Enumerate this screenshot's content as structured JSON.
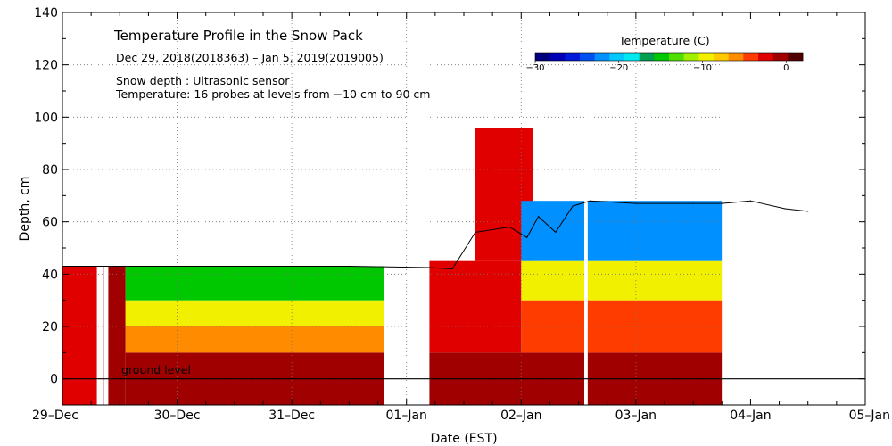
{
  "chart_data": {
    "type": "heatmap",
    "title": "Temperature Profile in the Snow Pack",
    "subtitle": "Dec 29, 2018(2018363) – Jan  5, 2019(2019005)",
    "annotations": [
      "Snow depth : Ultrasonic sensor",
      "Temperature: 16 probes at levels from −10 cm to 90 cm"
    ],
    "ground_label": "ground level",
    "xlabel": "Date (EST)",
    "ylabel": "Depth, cm",
    "xlim": [
      0,
      7
    ],
    "ylim": [
      -10,
      140
    ],
    "grid": true,
    "x_ticks": [
      {
        "pos": 0,
        "label": "29–Dec"
      },
      {
        "pos": 1,
        "label": "30–Dec"
      },
      {
        "pos": 2,
        "label": "31–Dec"
      },
      {
        "pos": 3,
        "label": "01–Jan"
      },
      {
        "pos": 4,
        "label": "02–Jan"
      },
      {
        "pos": 5,
        "label": "03–Jan"
      },
      {
        "pos": 6,
        "label": "04–Jan"
      },
      {
        "pos": 7,
        "label": "05–Jan"
      }
    ],
    "y_ticks": [
      {
        "pos": 0,
        "label": "0"
      },
      {
        "pos": 20,
        "label": "20"
      },
      {
        "pos": 40,
        "label": "40"
      },
      {
        "pos": 60,
        "label": "60"
      },
      {
        "pos": 80,
        "label": "80"
      },
      {
        "pos": 100,
        "label": "100"
      },
      {
        "pos": 120,
        "label": "120"
      },
      {
        "pos": 140,
        "label": "140"
      }
    ],
    "colorbar": {
      "title": "Temperature (C)",
      "range": [
        -30,
        2
      ],
      "ticks": [
        {
          "value": -30,
          "label": "−30"
        },
        {
          "value": -20,
          "label": "−20"
        },
        {
          "value": -10,
          "label": "−10"
        },
        {
          "value": 0,
          "label": "0"
        }
      ],
      "colors": [
        "#00007a",
        "#0000b4",
        "#0018d8",
        "#0050f0",
        "#0090ff",
        "#00c8ff",
        "#00e8f0",
        "#00a050",
        "#00c800",
        "#50e000",
        "#a0f000",
        "#f0f000",
        "#ffc800",
        "#ff8c00",
        "#ff3c00",
        "#e00000",
        "#a00000",
        "#500000"
      ]
    },
    "snow_depth_series": [
      {
        "x": 0.0,
        "y": 43
      },
      {
        "x": 0.5,
        "y": 43
      },
      {
        "x": 1.0,
        "y": 43
      },
      {
        "x": 1.5,
        "y": 43
      },
      {
        "x": 2.0,
        "y": 43
      },
      {
        "x": 2.5,
        "y": 43
      },
      {
        "x": 3.2,
        "y": 42.5
      },
      {
        "x": 3.4,
        "y": 42
      },
      {
        "x": 3.6,
        "y": 56
      },
      {
        "x": 3.9,
        "y": 58
      },
      {
        "x": 4.05,
        "y": 54
      },
      {
        "x": 4.15,
        "y": 62
      },
      {
        "x": 4.3,
        "y": 56
      },
      {
        "x": 4.45,
        "y": 66
      },
      {
        "x": 4.6,
        "y": 68
      },
      {
        "x": 5.0,
        "y": 67
      },
      {
        "x": 5.5,
        "y": 67
      },
      {
        "x": 5.75,
        "y": 67
      },
      {
        "x": 6.0,
        "y": 68
      },
      {
        "x": 6.3,
        "y": 65
      },
      {
        "x": 6.5,
        "y": 64
      }
    ],
    "temperature_regions": [
      {
        "x0": 0.0,
        "x1": 0.3,
        "y0": -10,
        "y1": 43,
        "value": -3
      },
      {
        "x0": 0.35,
        "x1": 0.55,
        "y0": -10,
        "y1": 43,
        "value": -1
      },
      {
        "x0": 0.55,
        "x1": 2.8,
        "y0": -10,
        "y1": 10,
        "value": -1
      },
      {
        "x0": 0.55,
        "x1": 2.8,
        "y0": 10,
        "y1": 20,
        "value": -6
      },
      {
        "x0": 0.55,
        "x1": 2.8,
        "y0": 20,
        "y1": 30,
        "value": -9
      },
      {
        "x0": 0.55,
        "x1": 2.8,
        "y0": 30,
        "y1": 43,
        "value": -15
      },
      {
        "x0": 3.2,
        "x1": 5.75,
        "y0": -10,
        "y1": 10,
        "value": -1
      },
      {
        "x0": 3.2,
        "x1": 4.0,
        "y0": 10,
        "y1": 45,
        "value": -3
      },
      {
        "x0": 3.6,
        "x1": 4.1,
        "y0": 45,
        "y1": 96,
        "value": -2
      },
      {
        "x0": 4.0,
        "x1": 5.75,
        "y0": 10,
        "y1": 30,
        "value": -5
      },
      {
        "x0": 4.0,
        "x1": 5.75,
        "y0": 30,
        "y1": 45,
        "value": -10
      },
      {
        "x0": 4.0,
        "x1": 5.75,
        "y0": 45,
        "y1": 68,
        "value": -22
      }
    ],
    "data_gaps": [
      {
        "x0": 0.36,
        "x1": 0.4
      },
      {
        "x0": 3.02,
        "x1": 3.18
      },
      {
        "x0": 4.55,
        "x1": 4.58
      },
      {
        "x0": 5.75,
        "x1": 7.0
      }
    ]
  }
}
